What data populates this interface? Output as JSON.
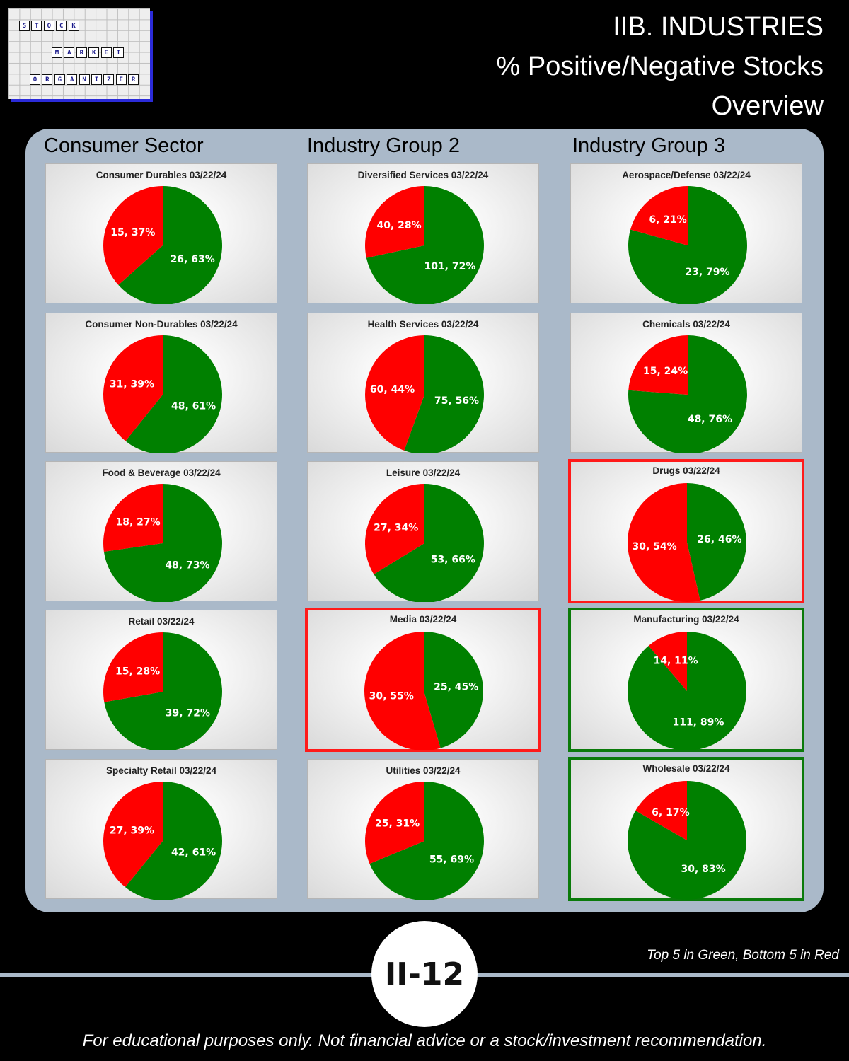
{
  "logo": {
    "rows": [
      [
        "S",
        "T",
        "O",
        "C",
        "K"
      ],
      [
        "M",
        "A",
        "R",
        "K",
        "E",
        "T"
      ],
      [
        "O",
        "R",
        "G",
        "A",
        "N",
        "I",
        "Z",
        "E",
        "R"
      ]
    ]
  },
  "header": {
    "line1": "IIB. INDUSTRIES",
    "line2": "% Positive/Negative Stocks",
    "line3": "Overview"
  },
  "columns": [
    "Consumer Sector",
    "Industry Group 2",
    "Industry Group 3"
  ],
  "colors": {
    "positive": "#008000",
    "negative": "#ff0000",
    "top5": "#0a7a0a",
    "bottom5": "#ff1a1a"
  },
  "chart_data": [
    {
      "type": "pie",
      "title": "Consumer Durables 03/22/24",
      "categories": [
        "Negative",
        "Positive"
      ],
      "values": [
        15,
        26
      ],
      "labels": [
        "15, 37%",
        "26, 63%"
      ],
      "highlight": ""
    },
    {
      "type": "pie",
      "title": "Diversified Services 03/22/24",
      "categories": [
        "Negative",
        "Positive"
      ],
      "values": [
        40,
        101
      ],
      "labels": [
        "40, 28%",
        "101, 72%"
      ],
      "highlight": ""
    },
    {
      "type": "pie",
      "title": "Aerospace/Defense 03/22/24",
      "categories": [
        "Negative",
        "Positive"
      ],
      "values": [
        6,
        23
      ],
      "labels": [
        "6, 21%",
        "23, 79%"
      ],
      "highlight": ""
    },
    {
      "type": "pie",
      "title": "Consumer Non-Durables 03/22/24",
      "categories": [
        "Negative",
        "Positive"
      ],
      "values": [
        31,
        48
      ],
      "labels": [
        "31, 39%",
        "48, 61%"
      ],
      "highlight": ""
    },
    {
      "type": "pie",
      "title": "Health Services 03/22/24",
      "categories": [
        "Negative",
        "Positive"
      ],
      "values": [
        60,
        75
      ],
      "labels": [
        "60, 44%",
        "75, 56%"
      ],
      "highlight": ""
    },
    {
      "type": "pie",
      "title": "Chemicals 03/22/24",
      "categories": [
        "Negative",
        "Positive"
      ],
      "values": [
        15,
        48
      ],
      "labels": [
        "15, 24%",
        "48, 76%"
      ],
      "highlight": ""
    },
    {
      "type": "pie",
      "title": "Food & Beverage 03/22/24",
      "categories": [
        "Negative",
        "Positive"
      ],
      "values": [
        18,
        48
      ],
      "labels": [
        "18, 27%",
        "48, 73%"
      ],
      "highlight": ""
    },
    {
      "type": "pie",
      "title": "Leisure 03/22/24",
      "categories": [
        "Negative",
        "Positive"
      ],
      "values": [
        27,
        53
      ],
      "labels": [
        "27, 34%",
        "53, 66%"
      ],
      "highlight": ""
    },
    {
      "type": "pie",
      "title": "Drugs 03/22/24",
      "categories": [
        "Negative",
        "Positive"
      ],
      "values": [
        30,
        26
      ],
      "labels": [
        "30, 54%",
        "26, 46%"
      ],
      "highlight": "red"
    },
    {
      "type": "pie",
      "title": "Retail 03/22/24",
      "categories": [
        "Negative",
        "Positive"
      ],
      "values": [
        15,
        39
      ],
      "labels": [
        "15, 28%",
        "39, 72%"
      ],
      "highlight": ""
    },
    {
      "type": "pie",
      "title": "Media 03/22/24",
      "categories": [
        "Negative",
        "Positive"
      ],
      "values": [
        30,
        25
      ],
      "labels": [
        "30, 55%",
        "25, 45%"
      ],
      "highlight": "red"
    },
    {
      "type": "pie",
      "title": "Manufacturing 03/22/24",
      "categories": [
        "Negative",
        "Positive"
      ],
      "values": [
        14,
        111
      ],
      "labels": [
        "14, 11%",
        "111, 89%"
      ],
      "highlight": "green"
    },
    {
      "type": "pie",
      "title": "Specialty Retail 03/22/24",
      "categories": [
        "Negative",
        "Positive"
      ],
      "values": [
        27,
        42
      ],
      "labels": [
        "27, 39%",
        "42, 61%"
      ],
      "highlight": ""
    },
    {
      "type": "pie",
      "title": "Utilities 03/22/24",
      "categories": [
        "Negative",
        "Positive"
      ],
      "values": [
        25,
        55
      ],
      "labels": [
        "25, 31%",
        "55, 69%"
      ],
      "highlight": ""
    },
    {
      "type": "pie",
      "title": "Wholesale 03/22/24",
      "categories": [
        "Negative",
        "Positive"
      ],
      "values": [
        6,
        30
      ],
      "labels": [
        "6, 17%",
        "30, 83%"
      ],
      "highlight": "green"
    }
  ],
  "footer": {
    "legend_note": "Top 5 in Green, Bottom 5 in Red",
    "page_number": "II-12",
    "disclaimer": "For educational purposes only. Not financial advice or a stock/investment recommendation."
  }
}
